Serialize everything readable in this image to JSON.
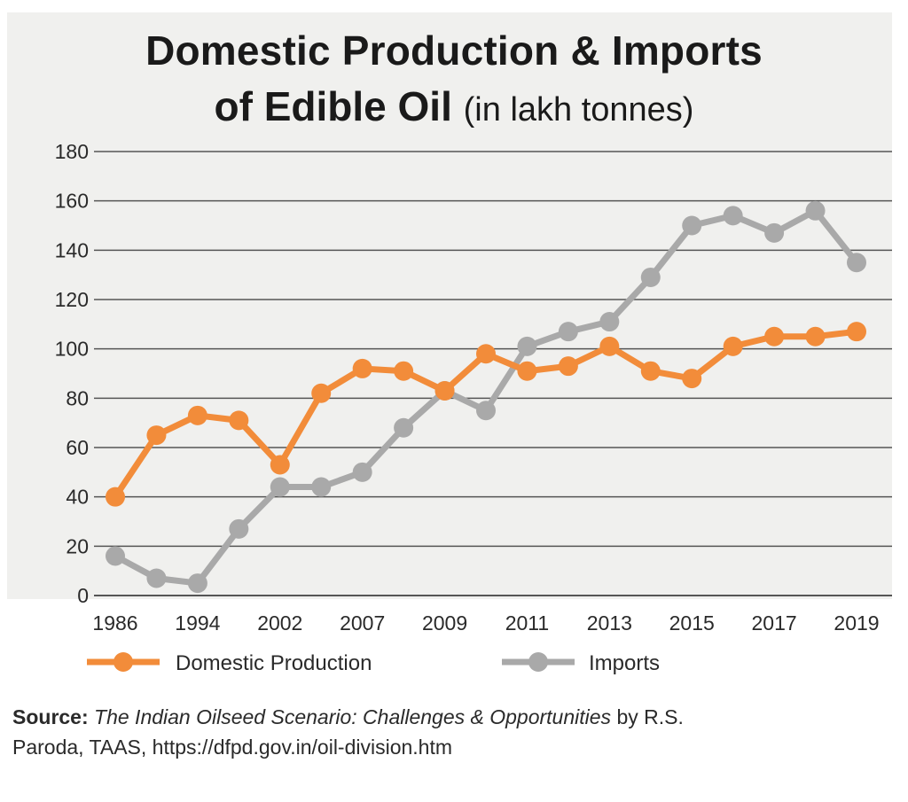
{
  "colors": {
    "domestic": "#f28c3a",
    "imports": "#a9a9a9",
    "grid": "#555555",
    "panel": "#f0f0ee"
  },
  "source": {
    "label": "Source:",
    "title": "The Indian Oilseed Scenario: Challenges & Opportunities",
    "author": "by R.S.",
    "rest": "Paroda, TAAS, https://dfpd.gov.in/oil-division.htm"
  },
  "chart_data": {
    "type": "line",
    "title": "Domestic Production & Imports",
    "title_line2": "of Edible Oil",
    "subtitle": "(in lakh tonnes)",
    "xlabel": "",
    "ylabel": "",
    "ylim": [
      0,
      180
    ],
    "y_ticks": [
      0,
      20,
      40,
      60,
      80,
      100,
      120,
      140,
      160,
      180
    ],
    "x_tick_labels": [
      "1986",
      "1994",
      "2002",
      "2007",
      "2009",
      "2011",
      "2013",
      "2015",
      "2017",
      "2019"
    ],
    "grid": true,
    "legend_position": "bottom",
    "series": [
      {
        "name": "Domestic Production",
        "values": [
          40,
          65,
          73,
          71,
          53,
          82,
          92,
          91,
          83,
          98,
          91,
          93,
          101,
          91,
          88,
          101,
          105,
          105,
          107
        ]
      },
      {
        "name": "Imports",
        "values": [
          16,
          7,
          5,
          27,
          44,
          44,
          50,
          68,
          83,
          75,
          101,
          107,
          111,
          129,
          150,
          154,
          147,
          156,
          135
        ]
      }
    ]
  }
}
